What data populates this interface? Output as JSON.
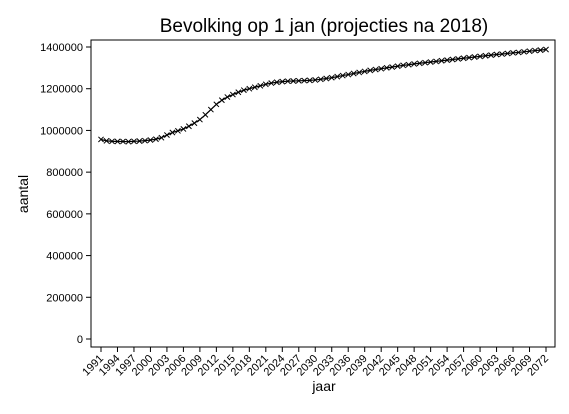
{
  "chart_data": {
    "type": "line",
    "title": "Bevolking op 1 jan (projecties na 2018)",
    "xlabel": "jaar",
    "ylabel": "aantal",
    "xlim": [
      1991,
      2072
    ],
    "ylim": [
      0,
      1400000
    ],
    "x_ticks": [
      1991,
      1994,
      1997,
      2000,
      2003,
      2006,
      2009,
      2012,
      2015,
      2018,
      2021,
      2024,
      2027,
      2030,
      2033,
      2036,
      2039,
      2042,
      2045,
      2048,
      2051,
      2054,
      2057,
      2060,
      2063,
      2066,
      2069,
      2072
    ],
    "y_ticks": [
      0,
      200000,
      400000,
      600000,
      800000,
      1000000,
      1200000,
      1400000
    ],
    "marker": "x",
    "grid": false,
    "series": [
      {
        "x": [
          1991,
          1992,
          1993,
          1994,
          1995,
          1996,
          1997,
          1998,
          1999,
          2000,
          2001,
          2002,
          2003,
          2004,
          2005,
          2006,
          2007,
          2008,
          2009,
          2010,
          2011,
          2012,
          2013,
          2014,
          2015,
          2016,
          2017,
          2018,
          2019,
          2020,
          2021,
          2022,
          2023,
          2024,
          2025,
          2026,
          2027,
          2028,
          2029,
          2030,
          2031,
          2032,
          2033,
          2034,
          2035,
          2036,
          2037,
          2038,
          2039,
          2040,
          2041,
          2042,
          2043,
          2044,
          2045,
          2046,
          2047,
          2048,
          2049,
          2050,
          2051,
          2052,
          2053,
          2054,
          2055,
          2056,
          2057,
          2058,
          2059,
          2060,
          2061,
          2062,
          2063,
          2064,
          2065,
          2066,
          2067,
          2068,
          2069,
          2070,
          2071,
          2072
        ],
        "values": [
          957000,
          950000,
          948000,
          947000,
          947000,
          946000,
          948000,
          949000,
          951000,
          954000,
          958000,
          965000,
          978000,
          990000,
          998000,
          1007000,
          1020000,
          1035000,
          1052000,
          1075000,
          1100000,
          1125000,
          1145000,
          1160000,
          1172000,
          1183000,
          1193000,
          1200000,
          1207000,
          1214000,
          1221000,
          1227000,
          1231000,
          1234000,
          1236000,
          1237000,
          1238000,
          1239000,
          1240000,
          1242000,
          1245000,
          1249000,
          1253000,
          1258000,
          1263000,
          1268000,
          1273000,
          1278000,
          1283000,
          1288000,
          1292000,
          1296000,
          1300000,
          1304000,
          1308000,
          1312000,
          1315000,
          1319000,
          1322000,
          1325000,
          1328000,
          1331000,
          1334000,
          1337000,
          1340000,
          1343000,
          1346000,
          1349000,
          1352000,
          1355000,
          1358000,
          1361000,
          1364000,
          1366000,
          1369000,
          1372000,
          1374000,
          1377000,
          1380000,
          1383000,
          1385000,
          1388000
        ]
      }
    ]
  }
}
